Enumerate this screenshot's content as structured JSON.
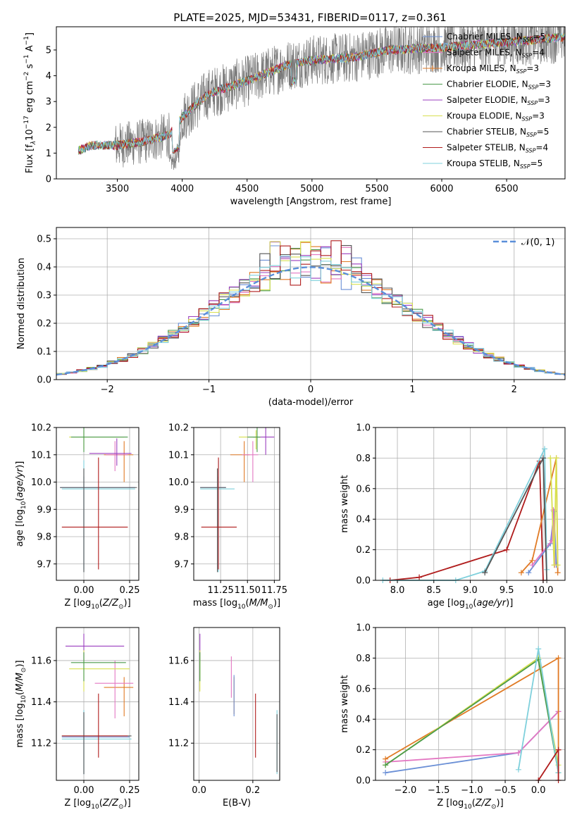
{
  "title": "PLATE=2025, MJD=53431, FIBERID=0117, z=0.361",
  "series": [
    {
      "name": "Chabrier MILES, N$_{SSP}$=5",
      "label_main": "Chabrier MILES, N",
      "label_sub": "SSP",
      "label_tail": "=5",
      "color": "#6a8fd6",
      "marker": "-"
    },
    {
      "name": "Salpeter MILES, N$_{SSP}$=4",
      "label_main": "Salpeter MILES, N",
      "label_sub": "SSP",
      "label_tail": "=4",
      "color": "#e377c2",
      "marker": "-"
    },
    {
      "name": "Kroupa MILES, N$_{SSP}$=3",
      "label_main": "Kroupa MILES, N",
      "label_sub": "SSP",
      "label_tail": "=3",
      "color": "#e07a24",
      "marker": "+"
    },
    {
      "name": "Chabrier ELODIE, N$_{SSP}$=3",
      "label_main": "Chabrier ELODIE, N",
      "label_sub": "SSP",
      "label_tail": "=3",
      "color": "#4a9a4a",
      "marker": "-"
    },
    {
      "name": "Salpeter ELODIE, N$_{SSP}$=3",
      "label_main": "Salpeter ELODIE, N",
      "label_sub": "SSP",
      "label_tail": "=3",
      "color": "#9b3fbf",
      "marker": "-"
    },
    {
      "name": "Kroupa ELODIE, N$_{SSP}$=3",
      "label_main": "Kroupa ELODIE, N",
      "label_sub": "SSP",
      "label_tail": "=3",
      "color": "#d8e050",
      "marker": "-"
    },
    {
      "name": "Chabrier STELIB, N$_{SSP}$=5",
      "label_main": "Chabrier STELIB, N",
      "label_sub": "SSP",
      "label_tail": "=5",
      "color": "#555555",
      "marker": "-"
    },
    {
      "name": "Salpeter STELIB, N$_{SSP}$=4",
      "label_main": "Salpeter STELIB, N",
      "label_sub": "SSP",
      "label_tail": "=4",
      "color": "#b01c1c",
      "marker": "-"
    },
    {
      "name": "Kroupa STELIB, N$_{SSP}$=5",
      "label_main": "Kroupa STELIB, N",
      "label_sub": "SSP",
      "label_tail": "=5",
      "color": "#7fd0dc",
      "marker": "-"
    }
  ],
  "chart_data": [
    {
      "type": "line",
      "xlabel": "wavelength [Angstrom, rest frame]",
      "ylabel": "Flux [f$_\\lambda$10$^{-17}$ erg cm$^{-2}$ s$^{-1}$ A$^{-1}$]",
      "ylabel_parts": [
        "Flux [f",
        "λ",
        "10",
        "−17",
        " erg cm",
        "−2",
        " s",
        "−1",
        " A",
        "−1",
        "]"
      ],
      "xlim": [
        3030,
        6950
      ],
      "ylim": [
        0,
        5.9
      ],
      "xticks": [
        "3500",
        "4000",
        "4500",
        "5000",
        "5500",
        "6000",
        "6500"
      ],
      "xtick_values": [
        3500,
        4000,
        4500,
        5000,
        5500,
        6000,
        6500
      ],
      "yticks": [
        "0",
        "1",
        "2",
        "3",
        "4",
        "5"
      ],
      "ytick_values": [
        0,
        1,
        2,
        3,
        4,
        5
      ],
      "grid": false,
      "legend": "upper right",
      "data_start": 3200,
      "data_end": 6950,
      "continuum": [
        [
          3200,
          1.1
        ],
        [
          3300,
          1.3
        ],
        [
          3500,
          1.3
        ],
        [
          3700,
          1.45
        ],
        [
          3900,
          1.7
        ],
        [
          4000,
          2.4
        ],
        [
          4200,
          3.3
        ],
        [
          4500,
          3.8
        ],
        [
          4800,
          4.4
        ],
        [
          5000,
          4.6
        ],
        [
          5300,
          4.7
        ],
        [
          5600,
          5.0
        ],
        [
          6000,
          5.1
        ],
        [
          6500,
          5.3
        ],
        [
          6950,
          5.5
        ]
      ]
    },
    {
      "type": "bar",
      "xlabel": "(data-model)/error",
      "ylabel": "Normed distribution",
      "xlim": [
        -2.5,
        2.5
      ],
      "ylim": [
        0,
        0.54
      ],
      "xticks": [
        "−2",
        "−1",
        "0",
        "1",
        "2"
      ],
      "xtick_values": [
        -2,
        -1,
        0,
        1,
        2
      ],
      "yticks": [
        "0.0",
        "0.1",
        "0.2",
        "0.3",
        "0.4",
        "0.5"
      ],
      "ytick_values": [
        0,
        0.1,
        0.2,
        0.3,
        0.4,
        0.5
      ],
      "grid": true,
      "legend": "upper right",
      "legend_label": "𝒩(0, 1)",
      "legend_color": "#5b8fd9",
      "bin_width": 0.1
    },
    {
      "type": "scatter",
      "xlabel": "Z [log$_{10}$(Z/Z$_\\odot$)]",
      "ylabel": "age  [log$_{10}$(age/yr)]",
      "xlim": [
        -0.15,
        0.3
      ],
      "ylim": [
        9.64,
        10.2
      ],
      "xticks": [
        "0.00",
        "0.25"
      ],
      "xtick_values": [
        0,
        0.25
      ],
      "yticks": [
        "9.7",
        "9.8",
        "9.9",
        "10.0",
        "10.1",
        "10.2"
      ],
      "ytick_values": [
        9.7,
        9.8,
        9.9,
        10.0,
        10.1,
        10.2
      ],
      "grid": true
    },
    {
      "type": "scatter",
      "xlabel": "mass [log$_{10}$(M/M$_\\odot$)]",
      "ylabel": "",
      "xlim": [
        11.0,
        11.8
      ],
      "ylim": [
        9.64,
        10.2
      ],
      "xticks": [
        "11.25",
        "11.50",
        "11.75"
      ],
      "xtick_values": [
        11.25,
        11.5,
        11.75
      ],
      "yticks": [
        "9.7",
        "9.8",
        "9.9",
        "10.0",
        "10.1",
        "10.2"
      ],
      "ytick_values": [
        9.7,
        9.8,
        9.9,
        10.0,
        10.1,
        10.2
      ],
      "grid": true
    },
    {
      "type": "line",
      "xlabel": "age  [log$_{10}$(age/yr)]",
      "ylabel": "mass weight",
      "xlim": [
        7.7,
        10.3
      ],
      "ylim": [
        0,
        1
      ],
      "xticks": [
        "8.0",
        "8.5",
        "9.0",
        "9.5",
        "10.0"
      ],
      "xtick_values": [
        8.0,
        8.5,
        9.0,
        9.5,
        10.0
      ],
      "yticks": [
        "0.0",
        "0.2",
        "0.4",
        "0.6",
        "0.8",
        "1.0"
      ],
      "ytick_values": [
        0,
        0.2,
        0.4,
        0.6,
        0.8,
        1.0
      ],
      "grid": true,
      "lines": [
        {
          "s": 7,
          "pts": [
            [
              7.9,
              0.0
            ],
            [
              8.3,
              0.02
            ],
            [
              9.5,
              0.2
            ],
            [
              9.95,
              0.78
            ],
            [
              10.0,
              0.0
            ]
          ]
        },
        {
          "s": 0,
          "pts": [
            [
              9.8,
              0.05
            ],
            [
              10.1,
              0.24
            ],
            [
              10.15,
              0.45
            ],
            [
              10.18,
              0.1
            ]
          ]
        },
        {
          "s": 1,
          "pts": [
            [
              9.85,
              0.1
            ],
            [
              10.12,
              0.26
            ],
            [
              10.14,
              0.46
            ],
            [
              10.16,
              0.1
            ]
          ]
        },
        {
          "s": 2,
          "pts": [
            [
              9.7,
              0.05
            ],
            [
              9.85,
              0.13
            ],
            [
              10.18,
              0.8
            ],
            [
              10.2,
              0.05
            ]
          ]
        },
        {
          "s": 5,
          "pts": [
            [
              10.1,
              0.8
            ],
            [
              10.15,
              0.1
            ],
            [
              10.18,
              0.8
            ],
            [
              10.2,
              0.1
            ]
          ]
        },
        {
          "s": 8,
          "pts": [
            [
              7.8,
              0.0
            ],
            [
              8.8,
              0.0
            ],
            [
              9.2,
              0.06
            ],
            [
              10.02,
              0.86
            ],
            [
              10.05,
              0.07
            ]
          ]
        },
        {
          "s": 6,
          "pts": [
            [
              9.2,
              0.05
            ],
            [
              10.0,
              0.8
            ],
            [
              10.05,
              0.0
            ]
          ]
        }
      ]
    },
    {
      "type": "scatter",
      "xlabel": "Z [log$_{10}$(Z/Z$_\\odot$)]",
      "ylabel": "mass [log$_{10}$(M/M$_\\odot$)]",
      "xlim": [
        -0.15,
        0.3
      ],
      "ylim": [
        11.02,
        11.76
      ],
      "xticks": [
        "0.00",
        "0.25"
      ],
      "xtick_values": [
        0,
        0.25
      ],
      "yticks": [
        "11.2",
        "11.4",
        "11.6"
      ],
      "ytick_values": [
        11.2,
        11.4,
        11.6
      ],
      "grid": true
    },
    {
      "type": "scatter",
      "xlabel": "E(B-V)",
      "ylabel": "",
      "xlim": [
        -0.02,
        0.3
      ],
      "ylim": [
        11.02,
        11.76
      ],
      "xticks": [
        "0.0",
        "0.2"
      ],
      "xtick_values": [
        0,
        0.2
      ],
      "yticks": [
        "11.2",
        "11.4",
        "11.6"
      ],
      "ytick_values": [
        11.2,
        11.4,
        11.6
      ],
      "grid": true
    },
    {
      "type": "line",
      "xlabel": "Z [log$_{10}$(Z/Z$_\\odot$)]",
      "ylabel": "mass weight",
      "xlim": [
        -2.45,
        0.4
      ],
      "ylim": [
        0,
        1
      ],
      "xticks": [
        "−2.0",
        "−1.5",
        "−1.0",
        "−0.5",
        "0.0"
      ],
      "xtick_values": [
        -2.0,
        -1.5,
        -1.0,
        -0.5,
        0.0
      ],
      "yticks": [
        "0.0",
        "0.2",
        "0.4",
        "0.6",
        "0.8",
        "1.0"
      ],
      "ytick_values": [
        0,
        0.2,
        0.4,
        0.6,
        0.8,
        1.0
      ],
      "grid": true,
      "lines": [
        {
          "s": 0,
          "pts": [
            [
              -2.3,
              0.05
            ],
            [
              -0.3,
              0.18
            ],
            [
              0.3,
              0.45
            ]
          ]
        },
        {
          "s": 1,
          "pts": [
            [
              -2.3,
              0.12
            ],
            [
              -0.3,
              0.18
            ],
            [
              0.3,
              0.45
            ]
          ]
        },
        {
          "s": 2,
          "pts": [
            [
              -2.3,
              0.14
            ],
            [
              0.3,
              0.8
            ],
            [
              0.3,
              0.2
            ]
          ]
        },
        {
          "s": 5,
          "pts": [
            [
              -2.3,
              0.1
            ],
            [
              0.0,
              0.8
            ],
            [
              0.3,
              0.1
            ]
          ]
        },
        {
          "s": 3,
          "pts": [
            [
              -2.3,
              0.1
            ],
            [
              0.0,
              0.79
            ],
            [
              0.3,
              0.05
            ]
          ]
        },
        {
          "s": 8,
          "pts": [
            [
              -0.3,
              0.07
            ],
            [
              0.0,
              0.86
            ],
            [
              0.3,
              0.05
            ]
          ]
        },
        {
          "s": 7,
          "pts": [
            [
              0.0,
              0.0
            ],
            [
              0.3,
              0.2
            ],
            [
              0.3,
              0.0
            ]
          ]
        }
      ]
    }
  ]
}
